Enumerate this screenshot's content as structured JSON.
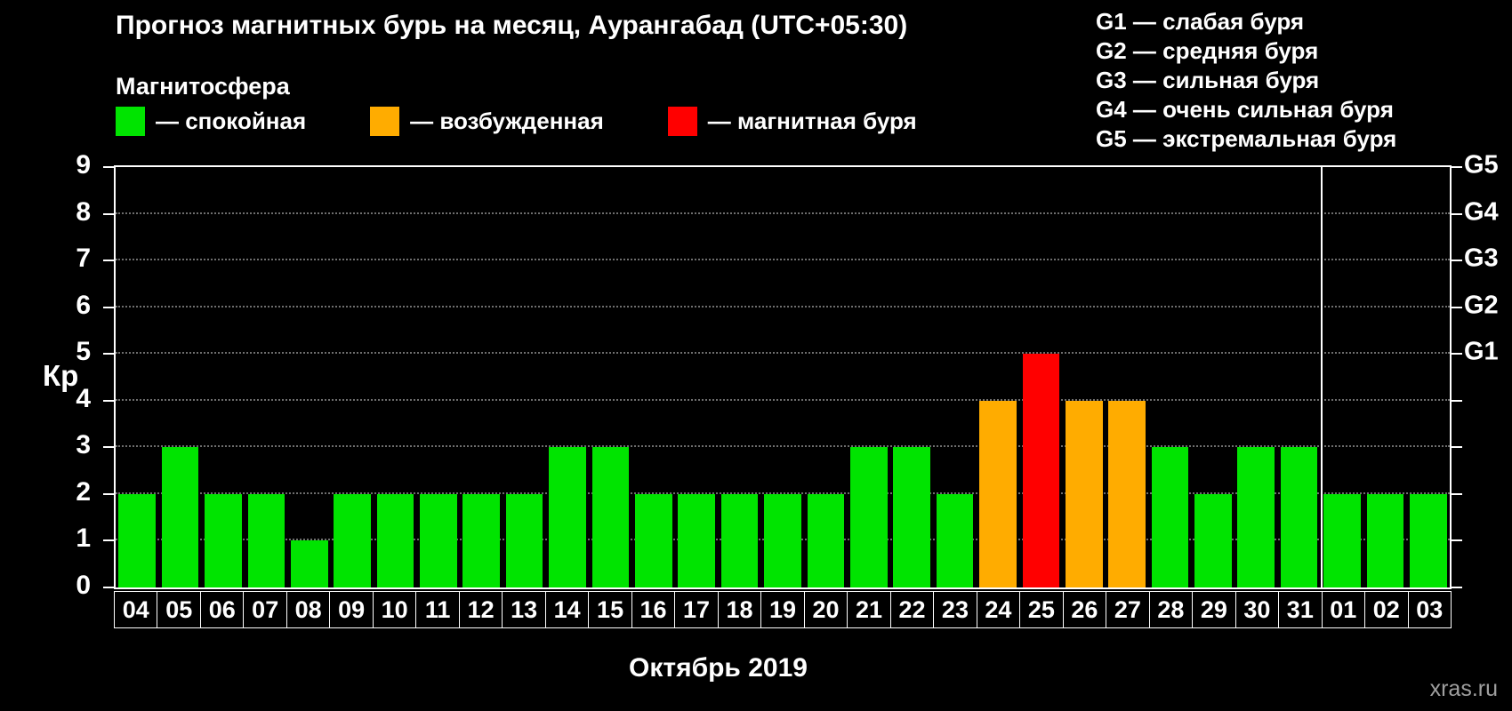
{
  "header": {
    "title": "Прогноз магнитных бурь на месяц, Аурангабад (UTC+05:30)"
  },
  "legend": {
    "title": "Магнитосфера",
    "items": [
      {
        "label": "— спокойная",
        "status": "quiet"
      },
      {
        "label": "— возбужденная",
        "status": "excited"
      },
      {
        "label": "— магнитная буря",
        "status": "storm"
      }
    ]
  },
  "g_scale_legend": [
    "G1 — слабая буря",
    "G2 — средняя буря",
    "G3 — сильная буря",
    "G4 — очень сильная буря",
    "G5 — экстремальная буря"
  ],
  "colors": {
    "quiet": "#00e400",
    "excited": "#ffac00",
    "storm": "#ff0000",
    "axis": "#ffffff",
    "grid": "#6e6e6e",
    "background": "#000000"
  },
  "chart_data": {
    "type": "bar",
    "title": "Прогноз магнитных бурь на месяц, Аурангабад (UTC+05:30)",
    "ylabel": "Кр",
    "xlabel": "Октябрь 2019",
    "ylim": [
      0,
      9
    ],
    "yticks": [
      0,
      1,
      2,
      3,
      4,
      5,
      6,
      7,
      8,
      9
    ],
    "grid": true,
    "legend_position": "top",
    "right_axis_labels": [
      {
        "value": 9,
        "label": "G5"
      },
      {
        "value": 8,
        "label": "G4"
      },
      {
        "value": 7,
        "label": "G3"
      },
      {
        "value": 6,
        "label": "G2"
      },
      {
        "value": 5,
        "label": "G1"
      }
    ],
    "categories": [
      "04",
      "05",
      "06",
      "07",
      "08",
      "09",
      "10",
      "11",
      "12",
      "13",
      "14",
      "15",
      "16",
      "17",
      "18",
      "19",
      "20",
      "21",
      "22",
      "23",
      "24",
      "25",
      "26",
      "27",
      "28",
      "29",
      "30",
      "31",
      "01",
      "02",
      "03"
    ],
    "values": [
      2,
      3,
      2,
      2,
      1,
      2,
      2,
      2,
      2,
      2,
      3,
      3,
      2,
      2,
      2,
      2,
      2,
      3,
      3,
      2,
      4,
      5,
      4,
      4,
      3,
      2,
      3,
      3,
      2,
      2,
      2
    ],
    "statuses": [
      "quiet",
      "quiet",
      "quiet",
      "quiet",
      "quiet",
      "quiet",
      "quiet",
      "quiet",
      "quiet",
      "quiet",
      "quiet",
      "quiet",
      "quiet",
      "quiet",
      "quiet",
      "quiet",
      "quiet",
      "quiet",
      "quiet",
      "quiet",
      "excited",
      "storm",
      "excited",
      "excited",
      "quiet",
      "quiet",
      "quiet",
      "quiet",
      "quiet",
      "quiet",
      "quiet"
    ],
    "month_separator_after_index": 27
  },
  "watermark": "xras.ru"
}
